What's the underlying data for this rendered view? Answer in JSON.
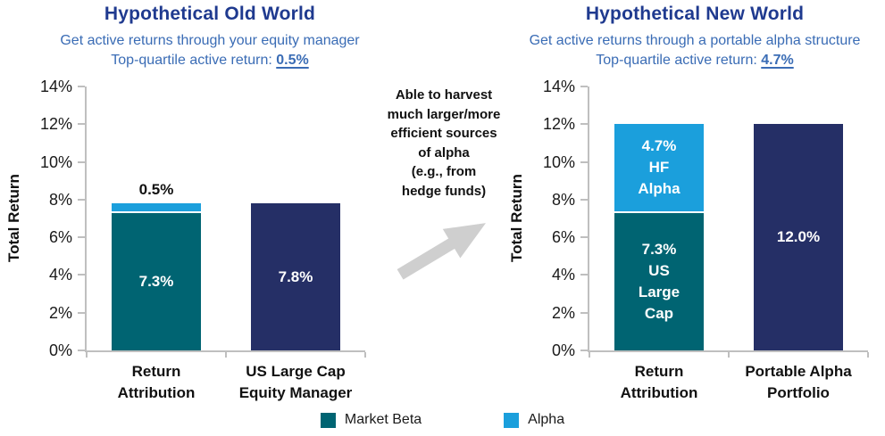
{
  "colors": {
    "title_text": "#1F3A8F",
    "subtitle_text": "#3A6CB5",
    "axis_line": "#BFBFBF",
    "arrow": "#CFCFCF",
    "body_text": "#111111",
    "market_beta": "#006472",
    "alpha": "#1B9FDC",
    "portfolio_navy": "#252F66"
  },
  "annotation": "Able to harvest\nmuch larger/more\nefficient sources\nof alpha\n(e.g., from\nhedge funds)",
  "legend": {
    "items": [
      {
        "label": "Market Beta",
        "color": "#006472"
      },
      {
        "label": "Alpha",
        "color": "#1B9FDC"
      }
    ]
  },
  "chart_data": [
    {
      "type": "bar",
      "title": "Hypothetical Old World",
      "subtitle": "Get active returns through your equity manager",
      "top_quartile_prefix": "Top-quartile active return: ",
      "top_quartile_value": "0.5%",
      "ylabel": "Total Return",
      "ylim": [
        0,
        14
      ],
      "yticks": [
        0,
        2,
        4,
        6,
        8,
        10,
        12,
        14
      ],
      "ytick_suffix": "%",
      "grid": false,
      "legend_position": "bottom",
      "categories": [
        "Return\nAttribution",
        "US Large Cap\nEquity Manager"
      ],
      "bars": [
        {
          "category": "Return\nAttribution",
          "top_label": "0.5%",
          "segments": [
            {
              "series": "Market Beta",
              "value": 7.3,
              "color": "#006472",
              "label": "7.3%"
            },
            {
              "series": "Alpha",
              "value": 0.5,
              "color": "#1B9FDC",
              "label": ""
            }
          ]
        },
        {
          "category": "US Large Cap\nEquity Manager",
          "segments": [
            {
              "series": "Total",
              "value": 7.8,
              "color": "#252F66",
              "label": "7.8%"
            }
          ]
        }
      ]
    },
    {
      "type": "bar",
      "title": "Hypothetical New World",
      "subtitle": "Get active returns through a portable alpha structure",
      "top_quartile_prefix": "Top-quartile active return: ",
      "top_quartile_value": "4.7%",
      "ylabel": "Total Return",
      "ylim": [
        0,
        14
      ],
      "yticks": [
        0,
        2,
        4,
        6,
        8,
        10,
        12,
        14
      ],
      "ytick_suffix": "%",
      "grid": false,
      "legend_position": "bottom",
      "categories": [
        "Return\nAttribution",
        "Portable Alpha\nPortfolio"
      ],
      "bars": [
        {
          "category": "Return\nAttribution",
          "segments": [
            {
              "series": "Market Beta",
              "value": 7.3,
              "color": "#006472",
              "label": "7.3%\nUS\nLarge\nCap"
            },
            {
              "series": "Alpha",
              "value": 4.7,
              "color": "#1B9FDC",
              "label": "4.7%\nHF\nAlpha"
            }
          ]
        },
        {
          "category": "Portable Alpha\nPortfolio",
          "segments": [
            {
              "series": "Total",
              "value": 12.0,
              "color": "#252F66",
              "label": "12.0%"
            }
          ]
        }
      ]
    }
  ]
}
